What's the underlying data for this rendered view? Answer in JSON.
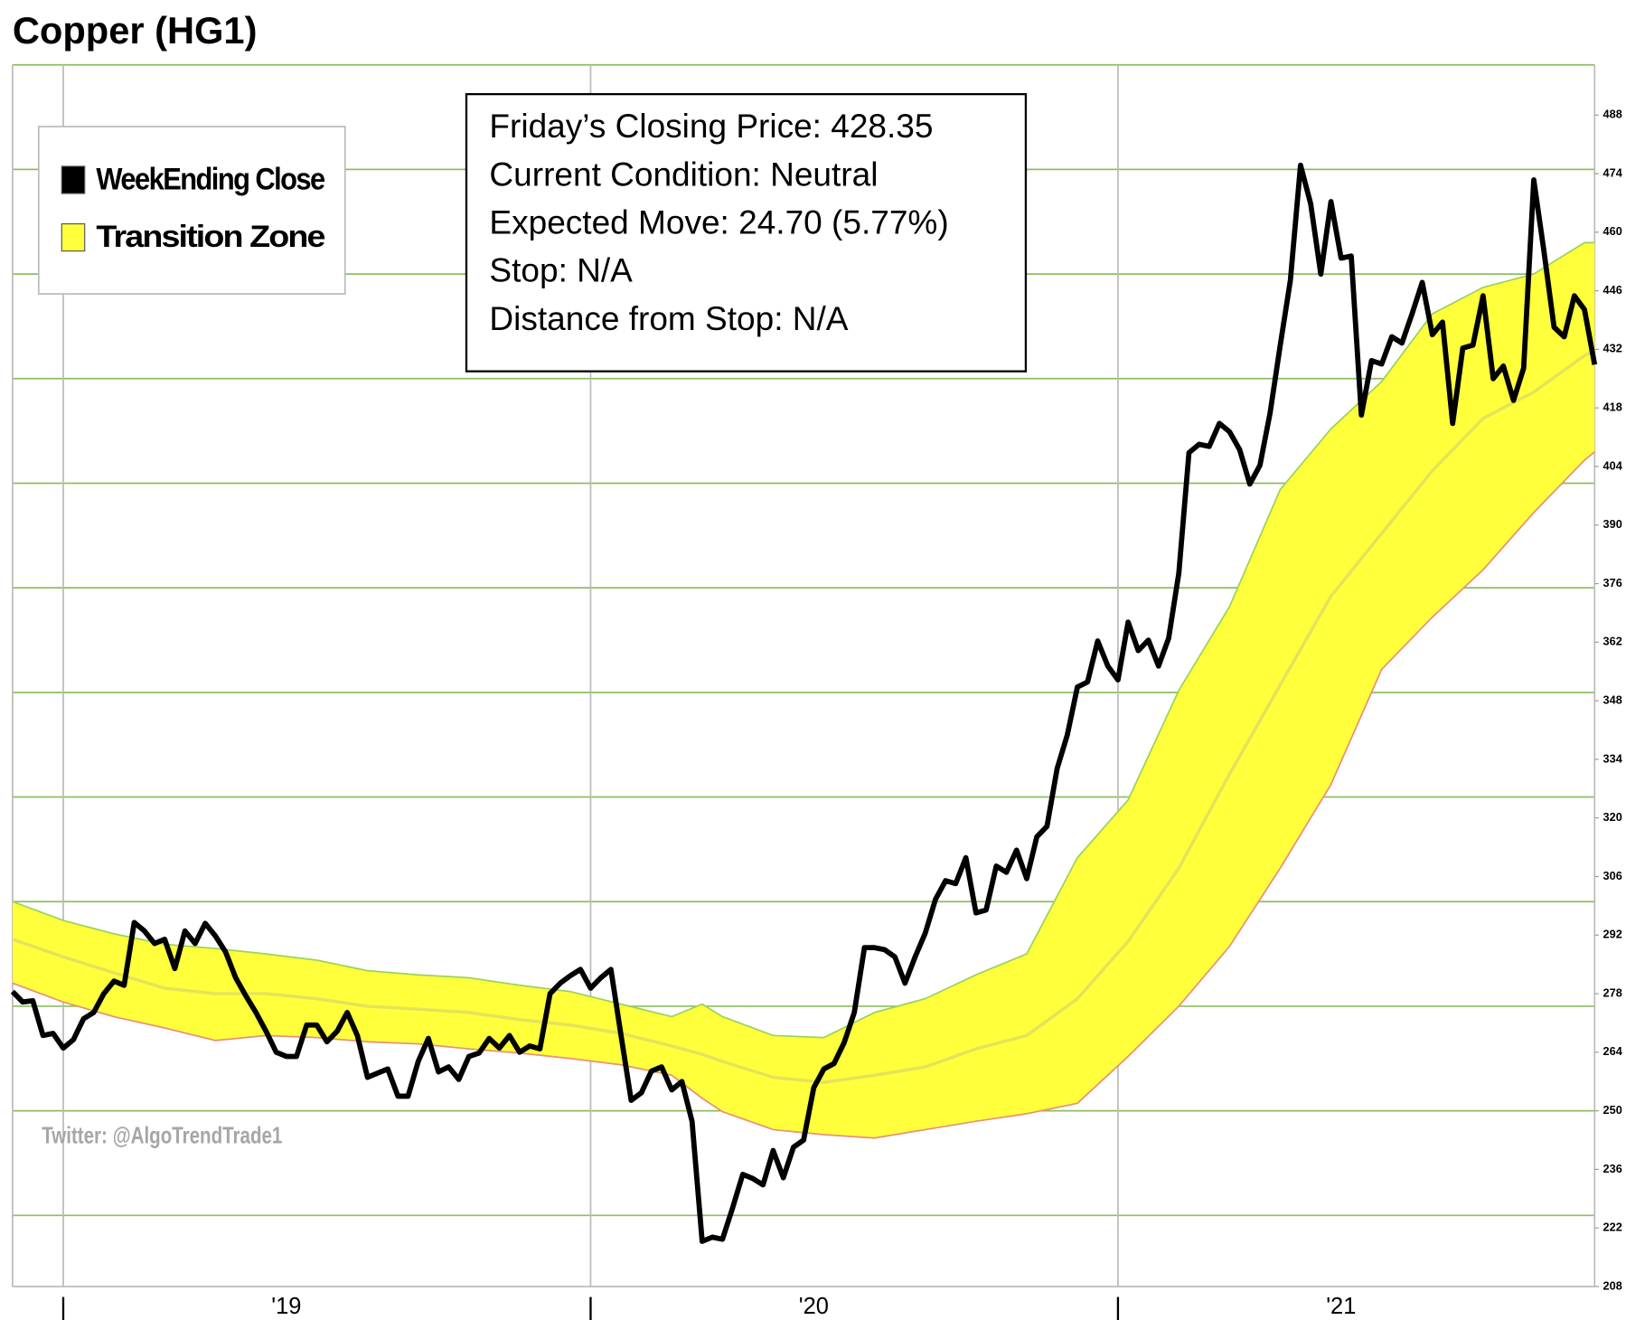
{
  "chart_data": {
    "type": "line",
    "title": "Copper (HG1)",
    "info_box": [
      "Friday’s Closing Price: 428.35",
      "Current Condition: Neutral",
      "Expected Move: 24.70 (5.77%)",
      "Stop: N/A",
      "Distance from Stop: N/A"
    ],
    "watermark": "Twitter: @AlgoTrendTrade1",
    "legend": "top-left",
    "xlim": [
      0,
      156
    ],
    "xticks": [
      {
        "value": 27,
        "label": "'19"
      },
      {
        "value": 79,
        "label": "'20"
      },
      {
        "value": 131,
        "label": "'21"
      }
    ],
    "xgrid": [
      5,
      57,
      109
    ],
    "ylim": [
      208,
      500
    ],
    "yticks": [
      208,
      222,
      236,
      250,
      264,
      278,
      292,
      306,
      320,
      334,
      348,
      362,
      376,
      390,
      404,
      418,
      432,
      446,
      460,
      474,
      488
    ],
    "ygrid": [
      225,
      250,
      275,
      300,
      325,
      350,
      375,
      400,
      425,
      450,
      475,
      500
    ],
    "grid_color": "#8cbf5f",
    "series": [
      {
        "name": "WeekEnding Close",
        "color": "#000000",
        "values": [
          278.5,
          276,
          276.3,
          268,
          268.5,
          265,
          267,
          272,
          273.5,
          278,
          281,
          280,
          295,
          293,
          290,
          291,
          284,
          293,
          290,
          294.8,
          291.8,
          288,
          281.8,
          277.5,
          273.5,
          269,
          264,
          263,
          263,
          270.5,
          270.5,
          266.5,
          269,
          273.5,
          268,
          258,
          259,
          260,
          253.5,
          253.5,
          261.8,
          267.3,
          259.3,
          260.5,
          257.5,
          263,
          263.8,
          267.3,
          265,
          268,
          264,
          265.5,
          264.8,
          278,
          280.5,
          282.3,
          283.8,
          279.3,
          281.8,
          283.8,
          268,
          252.5,
          254.3,
          259.5,
          260.5,
          255,
          257,
          247.5,
          218.8,
          219.8,
          219.3,
          226.8,
          234.8,
          233.8,
          232.3,
          240.5,
          234,
          241.3,
          243,
          255.5,
          260,
          261.3,
          266.3,
          273.5,
          289,
          289,
          288.5,
          286.8,
          280.5,
          286.8,
          292.5,
          300.5,
          305,
          304.3,
          310.5,
          297.3,
          298,
          308.5,
          307,
          312.3,
          305.5,
          315.5,
          318,
          331.8,
          339.8,
          351.3,
          352.5,
          362.3,
          356.3,
          353,
          366.8,
          360,
          362.5,
          356.3,
          363,
          378.5,
          407.3,
          409.3,
          408.8,
          414.3,
          412.3,
          408,
          399.8,
          404.3,
          416.8,
          433,
          448.5,
          476,
          466.8,
          450,
          467.3,
          453.8,
          454.3,
          416.3,
          429.3,
          428.5,
          435,
          433.5,
          440.5,
          448,
          435.5,
          438.5,
          414.3,
          432.3,
          433,
          444.8,
          425,
          428,
          419.8,
          427.5,
          472.5,
          455.5,
          437.3,
          435,
          444.8,
          441.5,
          428.35
        ]
      },
      {
        "name": "Transition Zone",
        "color": "#ffff3c",
        "upper_color": "#9bd35a",
        "lower_color": "#e8907a",
        "middle_color": "#e3e35a",
        "x": [
          0,
          5,
          10,
          15,
          20,
          25,
          30,
          35,
          40,
          45,
          50,
          55,
          60,
          65,
          68,
          70,
          75,
          80,
          85,
          90,
          95,
          100,
          105,
          110,
          115,
          120,
          125,
          130,
          135,
          140,
          145,
          150,
          155,
          156
        ],
        "upper": [
          300,
          295.5,
          292.3,
          289.8,
          288.8,
          287.5,
          286,
          283.5,
          282.5,
          281.8,
          280,
          278.5,
          275.5,
          272.5,
          275.5,
          272.5,
          268,
          267.5,
          273.5,
          276.8,
          282.5,
          287.5,
          310.5,
          324.3,
          350.5,
          370.5,
          398.5,
          413,
          424.3,
          440.5,
          446.8,
          450,
          457.5,
          457.5
        ],
        "lower": [
          280.5,
          276,
          272.5,
          269.8,
          266.8,
          268,
          267.5,
          266.5,
          266,
          264.8,
          263.8,
          262.5,
          261,
          258.5,
          253,
          249.8,
          245.5,
          244.3,
          243.5,
          245.5,
          247.5,
          249.3,
          251.8,
          263,
          275,
          289.3,
          308,
          328,
          355.5,
          368,
          379.3,
          393,
          405.5,
          407.5
        ],
        "middle": [
          291,
          286.8,
          283,
          279.3,
          278,
          278,
          276.8,
          275,
          274.3,
          273.5,
          271.8,
          270.5,
          268.5,
          265.5,
          263.5,
          261.8,
          258,
          256.8,
          258.5,
          260.5,
          264.8,
          268,
          276.8,
          290.5,
          308,
          330.5,
          351.8,
          373,
          388,
          403,
          415.5,
          421.8,
          430.5,
          431.8
        ]
      }
    ]
  }
}
